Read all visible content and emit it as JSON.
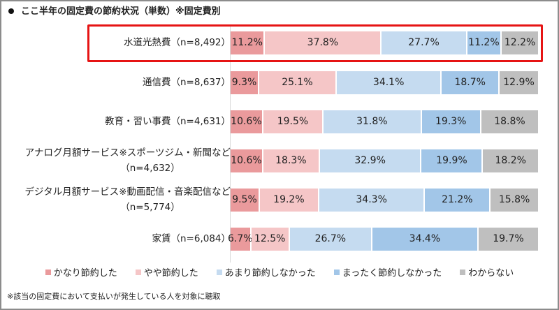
{
  "title": "ここ半年の固定費の節約状況（単数）※固定費別",
  "chart_data": {
    "type": "bar",
    "orientation": "horizontal",
    "stacked": true,
    "title": "ここ半年の固定費の節約状況（単数）※固定費別",
    "xlim": [
      0,
      100
    ],
    "unit": "%",
    "categories": [
      {
        "line1": "水道光熱費（n=8,492）",
        "line2": ""
      },
      {
        "line1": "通信費（n=8,637）",
        "line2": ""
      },
      {
        "line1": "教育・習い事費（n=4,631）",
        "line2": ""
      },
      {
        "line1": "アナログ月額サービス※スポーツジム・新聞など",
        "line2": "（n=4,632）"
      },
      {
        "line1": "デジタル月額サービス※動画配信・音楽配信など",
        "line2": "（n=5,774）"
      },
      {
        "line1": "家賃（n=6,084）",
        "line2": ""
      }
    ],
    "highlighted_category_index": 0,
    "series": [
      {
        "name": "かなり節約した",
        "color": "#ea9a9c",
        "values": [
          11.2,
          9.3,
          10.6,
          10.6,
          9.5,
          6.7
        ],
        "labels": [
          "11.2%",
          "9.3%",
          "10.6%",
          "10.6%",
          "9.5%",
          "6.7%"
        ]
      },
      {
        "name": "やや節約した",
        "color": "#f5c6c7",
        "values": [
          37.8,
          25.1,
          19.5,
          18.3,
          19.2,
          12.5
        ],
        "labels": [
          "37.8%",
          "25.1%",
          "19.5%",
          "18.3%",
          "19.2%",
          "12.5%"
        ]
      },
      {
        "name": "あまり節約しなかった",
        "color": "#c5dbf0",
        "values": [
          27.7,
          34.1,
          31.8,
          32.9,
          34.3,
          26.7
        ],
        "labels": [
          "27.7%",
          "34.1%",
          "31.8%",
          "32.9%",
          "34.3%",
          "26.7%"
        ]
      },
      {
        "name": "まったく節約しなかった",
        "color": "#a2c6e8",
        "values": [
          11.2,
          18.7,
          19.3,
          19.9,
          21.2,
          34.4
        ],
        "labels": [
          "11.2%",
          "18.7%",
          "19.3%",
          "19.9%",
          "21.2%",
          "34.4%"
        ]
      },
      {
        "name": "わからない",
        "color": "#bfbfbf",
        "values": [
          12.2,
          12.9,
          18.8,
          18.2,
          15.8,
          19.7
        ],
        "labels": [
          "12.2%",
          "12.9%",
          "18.8%",
          "18.2%",
          "15.8%",
          "19.7%"
        ]
      }
    ],
    "legend_position": "bottom"
  },
  "footnote": "※該当の固定費において支払いが発生している人を対象に聴取",
  "highlight_color": "#e61414"
}
